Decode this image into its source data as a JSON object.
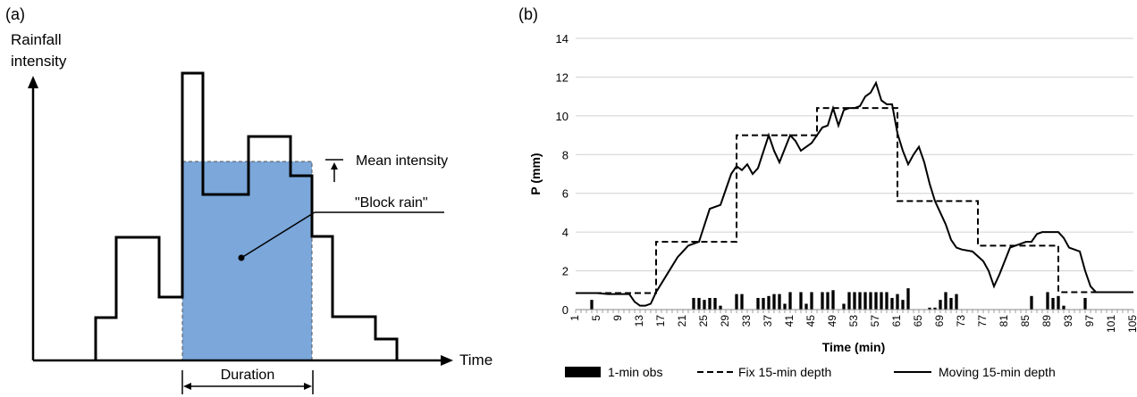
{
  "panel_a": {
    "tag": "(a)",
    "ylabel_line1": "Rainfall",
    "ylabel_line2": "intensity",
    "xlabel": "Time",
    "mean_label": "Mean intensity",
    "block_label": "\"Block rain\"",
    "duration_label": "Duration",
    "colors": {
      "block": "#7BA7DA",
      "line": "#000000"
    }
  },
  "panel_b": {
    "tag": "(b)",
    "legend": {
      "obs": "1-min obs",
      "fix": "Fix 15-min depth",
      "moving": "Moving 15-min depth"
    }
  },
  "chart_data": {
    "type": "bar",
    "ylabel": "P (mm)",
    "xlabel": "Time (min)",
    "ylim": [
      0,
      14
    ],
    "yticks": [
      0,
      2,
      4,
      6,
      8,
      10,
      12,
      14
    ],
    "xlim": [
      1,
      105
    ],
    "xticks": [
      1,
      5,
      9,
      13,
      17,
      21,
      25,
      29,
      33,
      37,
      41,
      45,
      49,
      53,
      57,
      61,
      65,
      69,
      73,
      77,
      81,
      85,
      89,
      93,
      97,
      101,
      105
    ],
    "grid": "horizontal",
    "legend_position": "bottom",
    "series": [
      {
        "name": "1-min obs",
        "kind": "bar",
        "x": [
          4,
          23,
          24,
          25,
          26,
          27,
          28,
          31,
          32,
          35,
          36,
          37,
          38,
          39,
          40,
          41,
          43,
          44,
          45,
          47,
          48,
          49,
          51,
          52,
          53,
          54,
          55,
          56,
          57,
          58,
          59,
          60,
          61,
          62,
          63,
          67,
          68,
          69,
          70,
          71,
          72,
          86,
          89,
          90,
          91,
          92,
          96
        ],
        "values": [
          0.5,
          0.6,
          0.6,
          0.5,
          0.6,
          0.6,
          0.2,
          0.8,
          0.8,
          0.6,
          0.6,
          0.7,
          0.8,
          0.8,
          0.3,
          0.9,
          0.9,
          0.3,
          0.9,
          0.9,
          0.9,
          1.0,
          0.3,
          0.9,
          0.9,
          0.9,
          0.9,
          0.9,
          0.9,
          0.9,
          0.9,
          0.6,
          0.8,
          0.5,
          1.1,
          0.1,
          0.1,
          0.5,
          0.9,
          0.6,
          0.8,
          0.7,
          0.9,
          0.6,
          0.7,
          0.2,
          0.6
        ]
      },
      {
        "name": "Fix 15-min depth",
        "kind": "step",
        "segments": [
          {
            "x_start": 1,
            "x_end": 16,
            "value": 0.85
          },
          {
            "x_start": 16,
            "x_end": 31,
            "value": 3.5
          },
          {
            "x_start": 31,
            "x_end": 46,
            "value": 9.0
          },
          {
            "x_start": 46,
            "x_end": 61,
            "value": 10.4
          },
          {
            "x_start": 61,
            "x_end": 76,
            "value": 5.6
          },
          {
            "x_start": 76,
            "x_end": 91,
            "value": 3.3
          },
          {
            "x_start": 91,
            "x_end": 105,
            "value": 0.9
          }
        ]
      },
      {
        "name": "Moving 15-min depth",
        "kind": "line",
        "x": [
          1,
          3,
          5,
          7,
          9,
          11,
          12,
          13,
          14,
          15,
          16,
          18,
          20,
          22,
          24,
          26,
          28,
          29,
          30,
          31,
          32,
          33,
          34,
          35,
          37,
          38,
          39,
          40,
          41,
          42,
          43,
          44,
          45,
          46,
          47,
          48,
          49,
          50,
          51,
          52,
          53,
          54,
          55,
          56,
          57,
          58,
          59,
          60,
          61,
          62,
          63,
          64,
          65,
          66,
          67,
          68,
          69,
          70,
          71,
          72,
          73,
          75,
          77,
          78,
          79,
          80,
          81,
          82,
          83,
          84,
          85,
          86,
          87,
          88,
          89,
          90,
          91,
          92,
          93,
          94,
          95,
          96,
          97,
          98,
          100,
          102,
          105
        ],
        "values": [
          0.85,
          0.85,
          0.85,
          0.8,
          0.8,
          0.8,
          0.4,
          0.2,
          0.2,
          0.3,
          0.9,
          1.8,
          2.7,
          3.3,
          3.5,
          5.2,
          5.4,
          6.2,
          7.0,
          7.4,
          7.2,
          7.5,
          7.0,
          7.3,
          9.0,
          8.2,
          7.6,
          8.3,
          9.0,
          8.7,
          8.2,
          8.4,
          8.6,
          9.0,
          9.4,
          9.5,
          10.4,
          9.5,
          10.3,
          10.4,
          10.4,
          10.5,
          11.0,
          11.2,
          11.7,
          10.8,
          10.6,
          10.6,
          9.1,
          8.2,
          7.5,
          8.0,
          8.4,
          7.6,
          6.5,
          5.6,
          5.0,
          4.4,
          3.6,
          3.2,
          3.1,
          3.0,
          2.5,
          2.0,
          1.2,
          1.8,
          2.5,
          3.2,
          3.3,
          3.4,
          3.5,
          3.5,
          3.9,
          4.0,
          4.0,
          4.0,
          4.0,
          3.7,
          3.2,
          3.1,
          3.0,
          2.0,
          1.2,
          0.9,
          0.9,
          0.9,
          0.9
        ]
      }
    ]
  }
}
